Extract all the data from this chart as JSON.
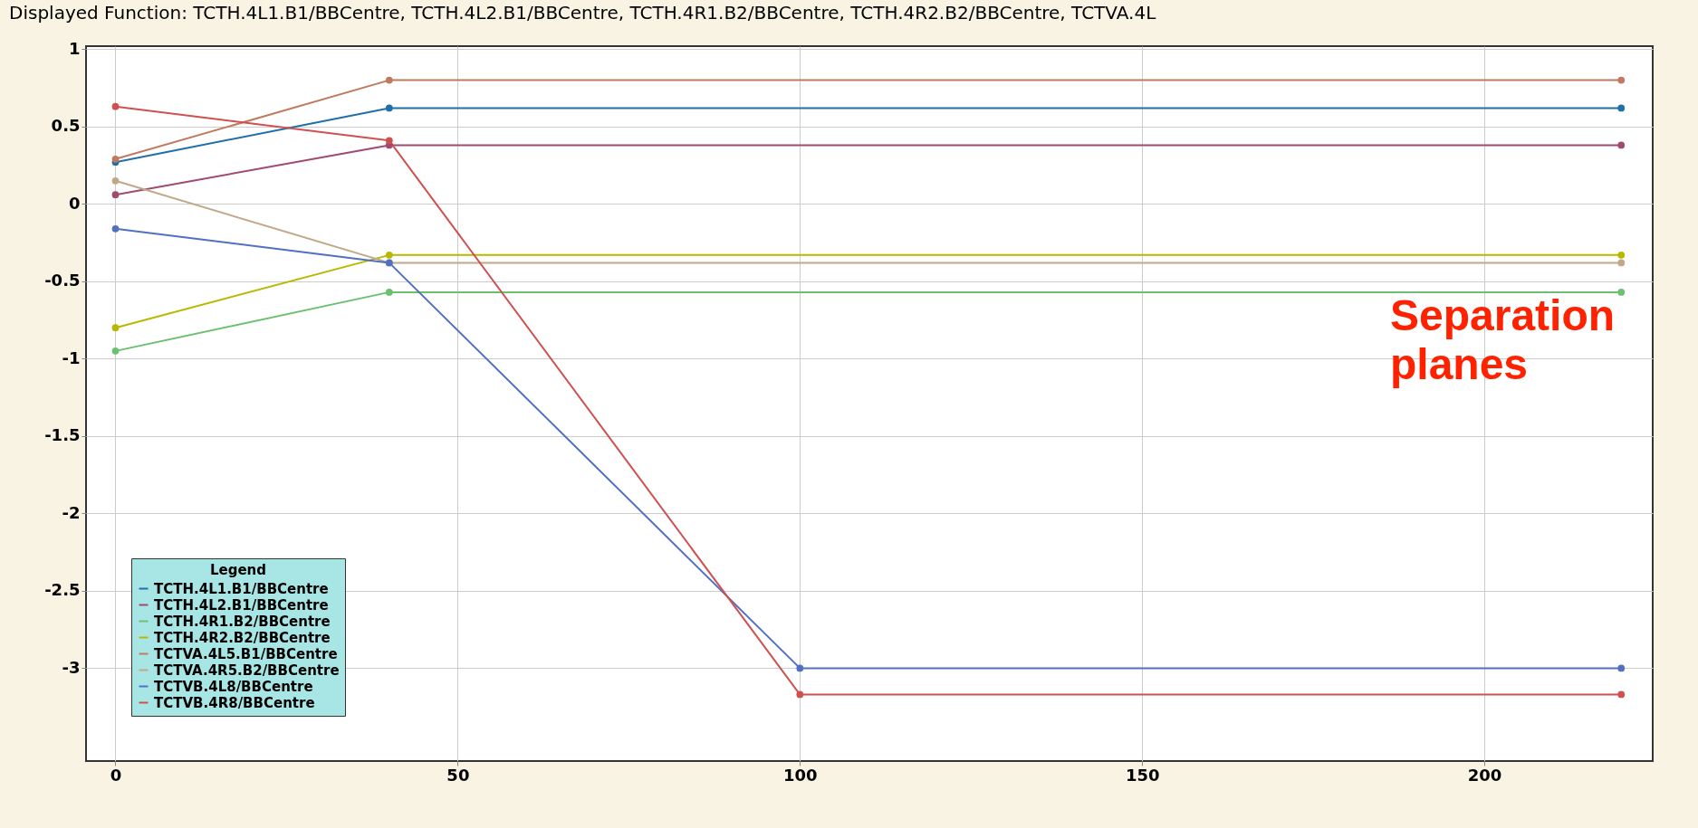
{
  "chart_data": {
    "type": "line",
    "title": "Displayed Function: TCTH.4L1.B1/BBCentre, TCTH.4L2.B1/BBCentre, TCTH.4R1.B2/BBCentre, TCTH.4R2.B2/BBCentre, TCTVA.4L",
    "legend_title": "Legend",
    "annotations": [
      "Separation planes"
    ],
    "xlim": [
      -4.3,
      224.6
    ],
    "xticks": [
      0,
      50,
      100,
      150,
      200
    ],
    "ylim": [
      -3.6,
      1.02
    ],
    "yticks": [
      1,
      0.5,
      0,
      -0.5,
      -1,
      -1.5,
      -2,
      -2.5,
      -3
    ],
    "grid": true,
    "legend": "bottom left",
    "marker": "circle",
    "series": [
      {
        "name": "TCTH.4L1.B1/BBCentre",
        "color": "#1f6fa8",
        "x": [
          0,
          40,
          220
        ],
        "values": [
          0.27,
          0.62,
          0.62
        ]
      },
      {
        "name": "TCTH.4L2.B1/BBCentre",
        "color": "#a04a70",
        "x": [
          0,
          40,
          220
        ],
        "values": [
          0.06,
          0.38,
          0.38
        ]
      },
      {
        "name": "TCTH.4R1.B2/BBCentre",
        "color": "#6cc070",
        "x": [
          0,
          40,
          220
        ],
        "values": [
          -0.95,
          -0.57,
          -0.57
        ]
      },
      {
        "name": "TCTH.4R2.B2/BBCentre",
        "color": "#b8b800",
        "x": [
          0,
          40,
          220
        ],
        "values": [
          -0.8,
          -0.33,
          -0.33
        ]
      },
      {
        "name": "TCTVA.4L5.B1/BBCentre",
        "color": "#c07a60",
        "x": [
          0,
          40,
          220
        ],
        "values": [
          0.29,
          0.8,
          0.8
        ]
      },
      {
        "name": "TCTVA.4R5.B2/BBCentre",
        "color": "#c0a888",
        "x": [
          0,
          40,
          220
        ],
        "values": [
          0.15,
          -0.38,
          -0.38
        ]
      },
      {
        "name": "TCTVB.4L8/BBCentre",
        "color": "#5070c0",
        "x": [
          0,
          40,
          100,
          220
        ],
        "values": [
          -0.16,
          -0.38,
          -3.0,
          -3.0
        ]
      },
      {
        "name": "TCTVB.4R8/BBCentre",
        "color": "#d05050",
        "x": [
          0,
          40,
          100,
          220
        ],
        "values": [
          0.63,
          0.41,
          -3.17,
          -3.17
        ]
      }
    ]
  }
}
